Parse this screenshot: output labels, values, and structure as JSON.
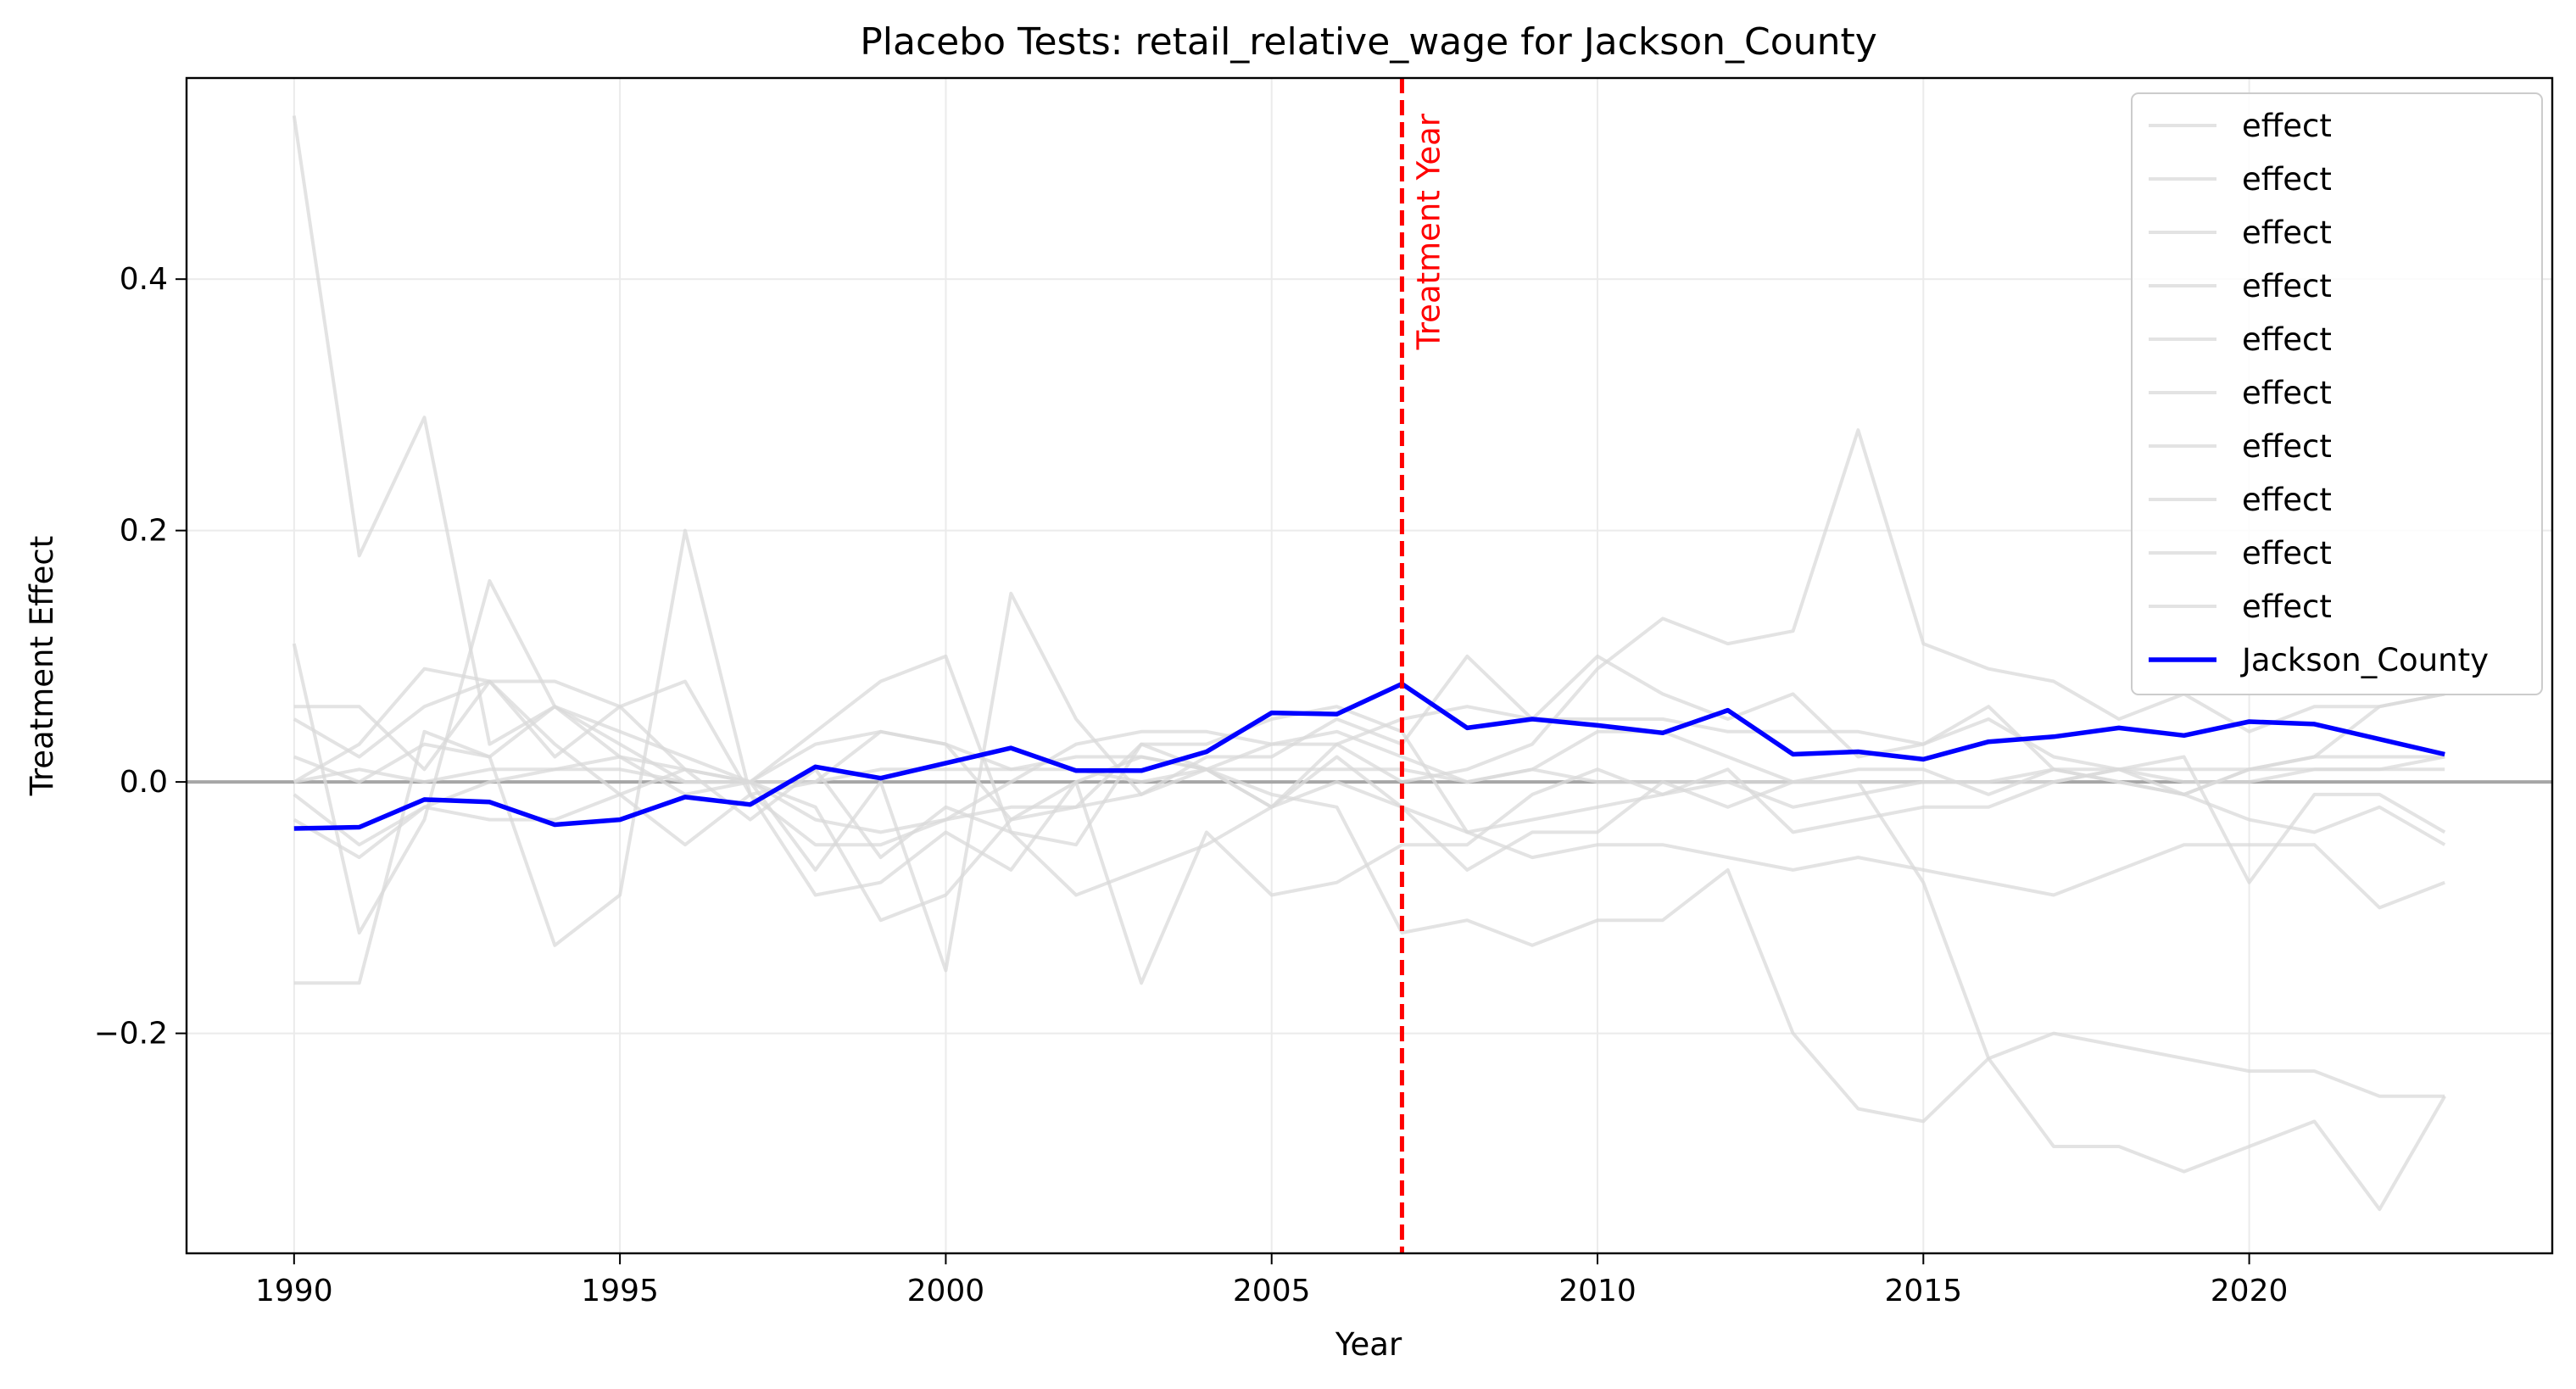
{
  "chart_data": {
    "type": "line",
    "title": "Placebo Tests: retail_relative_wage for Jackson_County",
    "xlabel": "Year",
    "ylabel": "Treatment Effect",
    "xlim": [
      1988.35,
      2024.65
    ],
    "ylim": [
      -0.375,
      0.56
    ],
    "xticks": [
      1990,
      1995,
      2000,
      2005,
      2010,
      2015,
      2020
    ],
    "yticks": [
      -0.2,
      0.0,
      0.2,
      0.4
    ],
    "ytick_labels": [
      "−0.2",
      "0.0",
      "0.2",
      "0.4"
    ],
    "grid": true,
    "legend_position": "top-right",
    "zero_line": 0,
    "treatment_line": {
      "x": 2007,
      "label": "Treatment Year",
      "color": "#ff0000"
    },
    "colors": {
      "placebo": "#d9d9d9",
      "treated": "#0000ff",
      "treatment": "#ff0000",
      "zero": "#a6a6a6"
    },
    "x": [
      1990,
      1991,
      1992,
      1993,
      1994,
      1995,
      1996,
      1997,
      1998,
      1999,
      2000,
      2001,
      2002,
      2003,
      2004,
      2005,
      2006,
      2007,
      2008,
      2009,
      2010,
      2011,
      2012,
      2013,
      2014,
      2015,
      2016,
      2017,
      2018,
      2019,
      2020,
      2021,
      2022,
      2023
    ],
    "placebo_series": [
      {
        "name": "effect",
        "values": [
          0.53,
          0.18,
          0.29,
          0.03,
          0.06,
          0.03,
          0.0,
          0.0,
          -0.02,
          -0.11,
          -0.09,
          -0.03,
          0.0,
          -0.16,
          -0.04,
          -0.09,
          -0.08,
          -0.05,
          -0.05,
          -0.01,
          0.01,
          -0.01,
          0.0,
          -0.02,
          -0.01,
          0.0,
          0.0,
          0.01,
          0.0,
          -0.01,
          0.01,
          0.02,
          0.02,
          0.02
        ]
      },
      {
        "name": "effect",
        "values": [
          0.11,
          -0.12,
          -0.03,
          0.16,
          0.06,
          0.02,
          0.01,
          0.0,
          -0.07,
          0.0,
          -0.15,
          0.15,
          0.05,
          -0.01,
          0.02,
          0.02,
          0.05,
          0.03,
          0.1,
          0.05,
          0.1,
          0.07,
          0.05,
          0.07,
          0.02,
          0.03,
          0.06,
          0.01,
          0.0,
          -0.01,
          0.01,
          0.02,
          0.06,
          0.07
        ]
      },
      {
        "name": "effect",
        "values": [
          -0.16,
          -0.16,
          0.04,
          0.02,
          -0.13,
          -0.09,
          0.2,
          -0.01,
          -0.09,
          -0.08,
          -0.04,
          -0.07,
          0.0,
          0.02,
          0.01,
          -0.01,
          -0.02,
          -0.12,
          -0.11,
          -0.13,
          -0.11,
          -0.11,
          -0.07,
          -0.2,
          -0.26,
          -0.27,
          -0.22,
          -0.29,
          -0.29,
          -0.31,
          -0.29,
          -0.27,
          -0.34,
          -0.25
        ]
      },
      {
        "name": "effect",
        "values": [
          0.06,
          0.06,
          0.01,
          0.08,
          0.03,
          -0.01,
          0.01,
          0.0,
          0.04,
          0.08,
          0.1,
          -0.04,
          -0.05,
          0.03,
          0.03,
          0.05,
          0.06,
          0.04,
          -0.04,
          -0.06,
          -0.05,
          -0.05,
          -0.06,
          -0.07,
          -0.06,
          -0.07,
          -0.08,
          -0.09,
          -0.07,
          -0.05,
          -0.05,
          -0.05,
          -0.1,
          -0.08
        ]
      },
      {
        "name": "effect",
        "values": [
          0.05,
          0.02,
          0.06,
          0.08,
          0.08,
          0.06,
          0.08,
          -0.01,
          0.0,
          0.04,
          0.03,
          -0.03,
          -0.02,
          0.03,
          0.01,
          0.03,
          0.03,
          0.05,
          0.06,
          0.05,
          0.05,
          0.05,
          0.04,
          0.04,
          0.04,
          0.03,
          0.05,
          0.02,
          0.01,
          0.0,
          0.0,
          0.01,
          0.01,
          0.02
        ]
      },
      {
        "name": "effect",
        "values": [
          0.0,
          0.03,
          0.09,
          0.08,
          0.02,
          0.06,
          0.01,
          -0.03,
          0.01,
          -0.06,
          -0.02,
          -0.04,
          -0.09,
          -0.07,
          -0.05,
          -0.02,
          0.03,
          0.0,
          0.01,
          0.03,
          0.09,
          0.13,
          0.11,
          0.12,
          0.28,
          0.11,
          0.09,
          0.08,
          0.05,
          0.07,
          0.04,
          0.06,
          0.06,
          0.07
        ]
      },
      {
        "name": "effect",
        "values": [
          -0.01,
          -0.05,
          -0.02,
          0.0,
          0.01,
          0.02,
          -0.01,
          0.0,
          -0.03,
          -0.04,
          -0.03,
          0.0,
          0.03,
          0.04,
          0.04,
          0.03,
          0.04,
          0.02,
          0.0,
          0.01,
          0.04,
          0.04,
          0.02,
          0.0,
          0.01,
          0.01,
          -0.01,
          0.01,
          0.01,
          0.02,
          -0.08,
          -0.01,
          -0.01,
          -0.04
        ]
      },
      {
        "name": "effect",
        "values": [
          0.0,
          0.01,
          0.0,
          0.01,
          0.01,
          0.01,
          0.0,
          0.0,
          0.0,
          0.01,
          0.01,
          0.01,
          0.01,
          0.0,
          0.01,
          0.01,
          0.01,
          0.01,
          0.0,
          0.01,
          0.0,
          0.0,
          0.0,
          0.0,
          0.0,
          0.0,
          0.0,
          0.0,
          0.01,
          0.01,
          0.01,
          0.01,
          0.01,
          0.01
        ]
      },
      {
        "name": "effect",
        "values": [
          -0.03,
          -0.06,
          -0.02,
          -0.03,
          -0.03,
          -0.01,
          -0.05,
          -0.01,
          -0.05,
          -0.05,
          -0.03,
          -0.02,
          -0.02,
          -0.01,
          0.01,
          -0.02,
          0.0,
          -0.02,
          -0.04,
          -0.03,
          -0.02,
          -0.01,
          0.01,
          -0.04,
          -0.03,
          -0.02,
          -0.02,
          0.0,
          0.01,
          -0.01,
          -0.03,
          -0.04,
          -0.02,
          -0.05
        ]
      },
      {
        "name": "effect",
        "values": [
          0.02,
          0.0,
          0.03,
          0.02,
          0.06,
          0.04,
          0.02,
          0.0,
          0.03,
          0.04,
          0.03,
          0.01,
          0.02,
          0.02,
          0.01,
          -0.02,
          0.02,
          -0.02,
          -0.07,
          -0.04,
          -0.04,
          0.0,
          -0.02,
          0.0,
          0.0,
          -0.08,
          -0.22,
          -0.2,
          -0.21,
          -0.22,
          -0.23,
          -0.23,
          -0.25,
          -0.25
        ]
      }
    ],
    "treated_series": {
      "name": "Jackson_County",
      "values": [
        -0.037,
        -0.036,
        -0.014,
        -0.016,
        -0.034,
        -0.03,
        -0.012,
        -0.018,
        0.012,
        0.003,
        0.015,
        0.027,
        0.009,
        0.009,
        0.024,
        0.055,
        0.054,
        0.078,
        0.043,
        0.05,
        0.045,
        0.039,
        0.057,
        0.022,
        0.024,
        0.018,
        0.032,
        0.036,
        0.043,
        0.037,
        0.048,
        0.046,
        0.034,
        0.022
      ]
    }
  }
}
